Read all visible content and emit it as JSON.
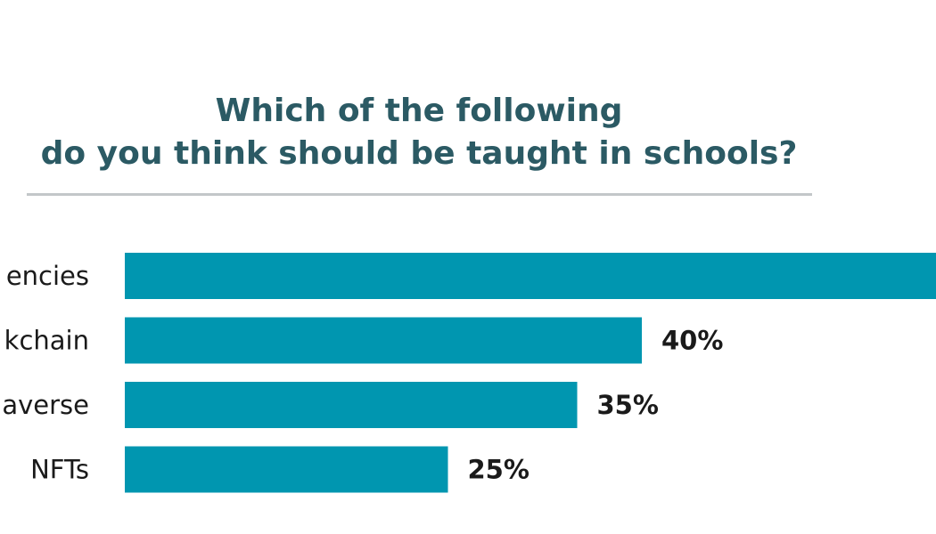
{
  "chart_data": {
    "type": "bar",
    "orientation": "horizontal",
    "title_lines": [
      "Which of the following",
      "do you think should be taught in schools?"
    ],
    "categories": [
      "encies",
      "kchain",
      "averse",
      "NFTs"
    ],
    "values": [
      63,
      40,
      35,
      25
    ],
    "value_labels": [
      "",
      "40%",
      "35%",
      "25%"
    ],
    "xlabel": "",
    "ylabel": "",
    "xlim": [
      0,
      70
    ],
    "grid": false,
    "legend": "none",
    "colors": {
      "bar": "#0096b0",
      "title": "#2b5a64",
      "divider": "#c3c7c9",
      "text": "#1a1a1a"
    }
  }
}
